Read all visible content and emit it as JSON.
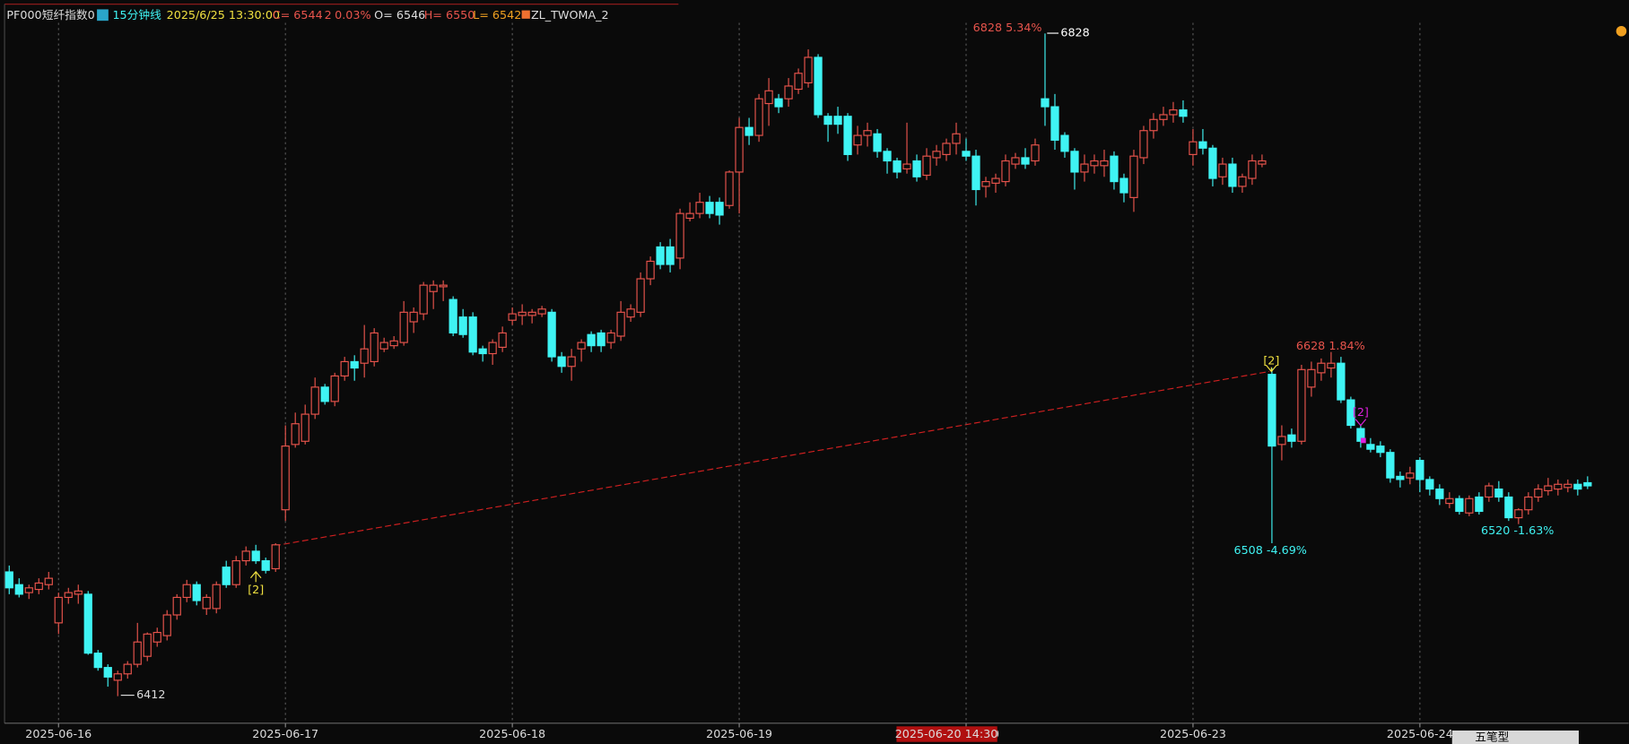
{
  "chart_data": {
    "type": "candlestick",
    "header": [
      "PF000",
      "短纤指数0",
      "15分钟线",
      "2025/6/25 13:30:00",
      "C= 6544",
      "2",
      "0.03%",
      "O= 6546",
      "H= 6550",
      "L= 6542",
      "ZL_TWOMA_2"
    ],
    "categories": [
      null,
      null,
      null,
      null,
      null,
      "2025-06-16",
      null,
      null,
      null,
      null,
      null,
      null,
      null,
      null,
      null,
      null,
      null,
      null,
      null,
      null,
      null,
      null,
      null,
      null,
      null,
      null,
      null,
      null,
      "2025-06-17",
      null,
      null,
      null,
      null,
      null,
      null,
      null,
      null,
      null,
      null,
      null,
      null,
      null,
      null,
      null,
      null,
      null,
      null,
      null,
      null,
      null,
      null,
      "2025-06-18",
      null,
      null,
      null,
      null,
      null,
      null,
      null,
      null,
      null,
      null,
      null,
      null,
      null,
      null,
      null,
      null,
      null,
      null,
      null,
      null,
      null,
      null,
      "2025-06-19",
      null,
      null,
      null,
      null,
      null,
      null,
      null,
      null,
      null,
      null,
      null,
      null,
      null,
      null,
      null,
      null,
      null,
      null,
      null,
      null,
      null,
      null,
      "2025-06-20",
      null,
      null,
      null,
      null,
      null,
      null,
      null,
      null,
      null,
      null,
      null,
      null,
      null,
      null,
      null,
      null,
      null,
      null,
      null,
      null,
      null,
      null,
      "2025-06-23",
      null,
      null,
      null,
      null,
      null,
      null,
      null,
      null,
      null,
      null,
      null,
      null,
      null,
      null,
      null,
      null,
      null,
      null,
      null,
      null,
      null,
      null,
      "2025-06-24",
      null,
      null,
      null,
      null,
      null,
      null,
      null,
      null,
      null,
      null,
      null,
      null,
      null,
      null,
      null,
      null,
      null
    ],
    "open": [
      6490,
      6482,
      6477,
      6479,
      6482,
      6458,
      6474,
      6476,
      6476,
      6439,
      6430,
      6422,
      6426,
      6432,
      6437,
      6446,
      6450,
      6463,
      6474,
      6482,
      6467,
      6467,
      6493,
      6482,
      6497,
      6503,
      6497,
      6492,
      6529,
      6570,
      6572,
      6589,
      6606,
      6597,
      6613,
      6622,
      6621,
      6622,
      6630,
      6632,
      6634,
      6647,
      6652,
      6666,
      6669,
      6661,
      6650,
      6650,
      6630,
      6627,
      6631,
      6648,
      6651,
      6651,
      6652,
      6653,
      6625,
      6619,
      6630,
      6639,
      6640,
      6634,
      6638,
      6650,
      6653,
      6674,
      6694,
      6694,
      6687,
      6712,
      6715,
      6722,
      6722,
      6720,
      6741,
      6769,
      6764,
      6784,
      6787,
      6787,
      6793,
      6797,
      6813,
      6776,
      6776,
      6776,
      6758,
      6764,
      6765,
      6754,
      6748,
      6743,
      6748,
      6739,
      6750,
      6752,
      6759,
      6754,
      6751,
      6732,
      6734,
      6735,
      6746,
      6750,
      6748,
      6787,
      6782,
      6764,
      6754,
      6741,
      6745,
      6745,
      6751,
      6737,
      6725,
      6750,
      6767,
      6774,
      6777,
      6780,
      6752,
      6760,
      6756,
      6738,
      6746,
      6732,
      6737,
      6746,
      6614,
      6570,
      6576,
      6572,
      6606,
      6615,
      6618,
      6621,
      6598,
      6580,
      6570,
      6569,
      6565,
      6550,
      6549,
      6560,
      6548,
      6542,
      6533,
      6536,
      6527,
      6537,
      6537,
      6542,
      6537,
      6524,
      6529,
      6537,
      6541,
      6542,
      6543,
      6545,
      6546
    ],
    "high": [
      6494,
      6486,
      6482,
      6486,
      6490,
      6477,
      6480,
      6482,
      6478,
      6441,
      6432,
      6428,
      6434,
      6458,
      6452,
      6455,
      6466,
      6476,
      6485,
      6484,
      6476,
      6484,
      6497,
      6500,
      6506,
      6507,
      6499,
      6508,
      6582,
      6590,
      6595,
      6612,
      6608,
      6615,
      6625,
      6626,
      6645,
      6643,
      6637,
      6638,
      6660,
      6656,
      6672,
      6673,
      6673,
      6663,
      6655,
      6653,
      6632,
      6636,
      6644,
      6656,
      6658,
      6655,
      6657,
      6655,
      6628,
      6630,
      6636,
      6641,
      6642,
      6642,
      6660,
      6658,
      6678,
      6688,
      6697,
      6699,
      6718,
      6722,
      6728,
      6726,
      6725,
      6742,
      6775,
      6775,
      6790,
      6800,
      6790,
      6800,
      6806,
      6818,
      6815,
      6778,
      6782,
      6778,
      6770,
      6772,
      6768,
      6756,
      6750,
      6772,
      6752,
      6756,
      6758,
      6762,
      6772,
      6762,
      6755,
      6738,
      6740,
      6752,
      6753,
      6756,
      6762,
      6828,
      6790,
      6766,
      6756,
      6752,
      6752,
      6755,
      6754,
      6740,
      6755,
      6770,
      6778,
      6782,
      6785,
      6786,
      6768,
      6768,
      6758,
      6750,
      6750,
      6740,
      6752,
      6752,
      6618,
      6582,
      6580,
      6620,
      6622,
      6624,
      6628,
      6625,
      6600,
      6582,
      6574,
      6572,
      6567,
      6553,
      6556,
      6562,
      6550,
      6545,
      6540,
      6538,
      6538,
      6540,
      6546,
      6547,
      6540,
      6530,
      6540,
      6545,
      6549,
      6548,
      6548,
      6548,
      6550
    ],
    "low": [
      6476,
      6474,
      6473,
      6476,
      6479,
      6451,
      6470,
      6470,
      6438,
      6428,
      6418,
      6412,
      6423,
      6430,
      6434,
      6443,
      6447,
      6460,
      6471,
      6469,
      6463,
      6464,
      6480,
      6480,
      6494,
      6495,
      6489,
      6490,
      6522,
      6568,
      6570,
      6586,
      6595,
      6594,
      6610,
      6610,
      6612,
      6619,
      6628,
      6630,
      6632,
      6640,
      6648,
      6655,
      6660,
      6638,
      6637,
      6626,
      6622,
      6620,
      6628,
      6645,
      6645,
      6646,
      6650,
      6622,
      6615,
      6610,
      6622,
      6628,
      6628,
      6630,
      6635,
      6647,
      6650,
      6670,
      6680,
      6678,
      6680,
      6710,
      6712,
      6712,
      6708,
      6718,
      6715,
      6758,
      6760,
      6770,
      6778,
      6782,
      6790,
      6794,
      6775,
      6760,
      6765,
      6748,
      6752,
      6757,
      6750,
      6740,
      6737,
      6740,
      6735,
      6736,
      6745,
      6748,
      6752,
      6748,
      6720,
      6725,
      6728,
      6732,
      6743,
      6743,
      6745,
      6770,
      6755,
      6750,
      6730,
      6735,
      6740,
      6738,
      6730,
      6722,
      6716,
      6746,
      6762,
      6770,
      6772,
      6772,
      6745,
      6752,
      6732,
      6733,
      6728,
      6728,
      6733,
      6744,
      6508,
      6560,
      6568,
      6570,
      6600,
      6610,
      6612,
      6596,
      6580,
      6568,
      6565,
      6562,
      6546,
      6543,
      6545,
      6540,
      6538,
      6532,
      6530,
      6526,
      6525,
      6526,
      6534,
      6534,
      6522,
      6520,
      6526,
      6534,
      6538,
      6538,
      6540,
      6538,
      6542
    ],
    "close": [
      6480,
      6476,
      6480,
      6483,
      6486,
      6474,
      6477,
      6478,
      6439,
      6430,
      6424,
      6426,
      6432,
      6446,
      6451,
      6452,
      6463,
      6474,
      6482,
      6472,
      6474,
      6482,
      6482,
      6497,
      6503,
      6497,
      6491,
      6507,
      6569,
      6583,
      6589,
      6606,
      6597,
      6613,
      6622,
      6618,
      6630,
      6640,
      6634,
      6635,
      6653,
      6653,
      6670,
      6670,
      6670,
      6640,
      6639,
      6628,
      6627,
      6634,
      6640,
      6652,
      6653,
      6653,
      6655,
      6625,
      6619,
      6625,
      6634,
      6632,
      6632,
      6640,
      6653,
      6655,
      6674,
      6685,
      6683,
      6683,
      6715,
      6715,
      6722,
      6715,
      6714,
      6741,
      6769,
      6764,
      6787,
      6792,
      6782,
      6795,
      6803,
      6813,
      6777,
      6771,
      6771,
      6752,
      6764,
      6767,
      6754,
      6748,
      6741,
      6746,
      6738,
      6751,
      6754,
      6759,
      6765,
      6751,
      6730,
      6735,
      6737,
      6748,
      6750,
      6746,
      6758,
      6782,
      6761,
      6754,
      6741,
      6746,
      6748,
      6748,
      6735,
      6728,
      6751,
      6767,
      6774,
      6777,
      6780,
      6776,
      6760,
      6756,
      6737,
      6746,
      6732,
      6738,
      6748,
      6748,
      6569,
      6575,
      6572,
      6617,
      6617,
      6621,
      6621,
      6598,
      6582,
      6572,
      6567,
      6565,
      6549,
      6548,
      6552,
      6548,
      6542,
      6536,
      6536,
      6528,
      6536,
      6528,
      6544,
      6537,
      6524,
      6529,
      6537,
      6542,
      6544,
      6545,
      6545,
      6542,
      6544
    ],
    "ylim": [
      6395,
      6849
    ],
    "up_color": "#e8544c",
    "down_color": "#3ff3f3",
    "grid": true,
    "annotations": [
      "6828 5.34%",
      "6828",
      "6412",
      "6508 -4.69%",
      "6628 1.84%",
      "6520 -1.63%",
      "[2]",
      "[2]",
      "[2]"
    ],
    "cursor_label": "2025-06-20 14:30",
    "toolbar": [
      "五笔型"
    ]
  }
}
